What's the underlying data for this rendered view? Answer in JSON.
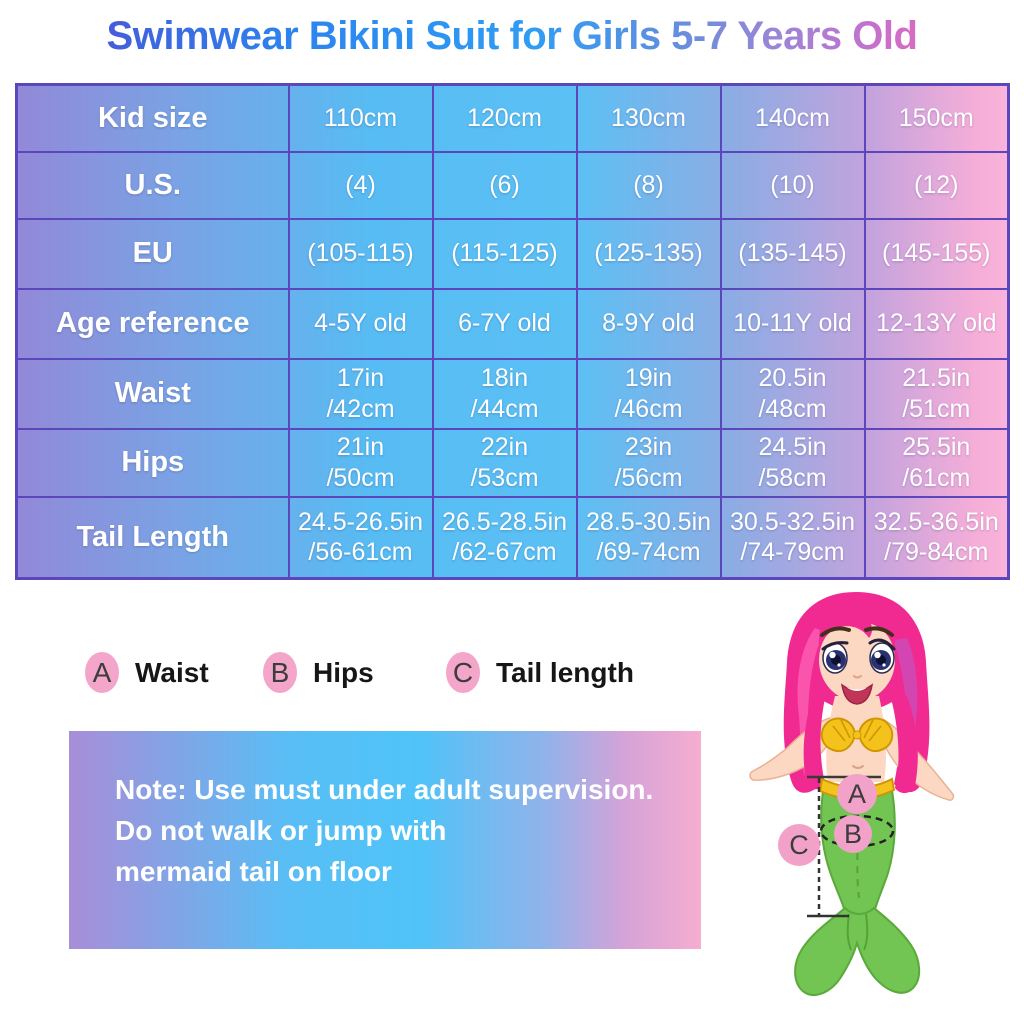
{
  "title": "Swimwear Bikini Suit for Girls 5-7 Years Old",
  "chart_data": {
    "type": "table",
    "title": "Swimwear Bikini Suit for Girls 5-7 Years Old",
    "header": [
      "Kid size",
      "110cm",
      "120cm",
      "130cm",
      "140cm",
      "150cm"
    ],
    "rows": [
      [
        "U.S.",
        "(4)",
        "(6)",
        "(8)",
        "(10)",
        "(12)"
      ],
      [
        "EU",
        "(105-115)",
        "(115-125)",
        "(125-135)",
        "(135-145)",
        "(145-155)"
      ],
      [
        "Age reference",
        "4-5Y old",
        "6-7Y old",
        "8-9Y old",
        "10-11Y old",
        "12-13Y old"
      ],
      [
        "Waist",
        "17in\n/42cm",
        "18in\n/44cm",
        "19in\n/46cm",
        "20.5in\n/48cm",
        "21.5in\n/51cm"
      ],
      [
        "Hips",
        "21in\n/50cm",
        "22in\n/53cm",
        "23in\n/56cm",
        "24.5in\n/58cm",
        "25.5in\n/61cm"
      ],
      [
        "Tail Length",
        "24.5-26.5in\n/56-61cm",
        "26.5-28.5in\n/62-67cm",
        "28.5-30.5in\n/69-74cm",
        "30.5-32.5in\n/74-79cm",
        "32.5-36.5in\n/79-84cm"
      ]
    ]
  },
  "legend": {
    "items": [
      {
        "letter": "A",
        "label": "Waist"
      },
      {
        "letter": "B",
        "label": "Hips"
      },
      {
        "letter": "C",
        "label": "Tail length"
      }
    ]
  },
  "note": {
    "lines": [
      "Note: Use must under adult supervision.",
      "Do not walk or jump with",
      "mermaid tail on floor"
    ]
  },
  "diagram": {
    "markers": {
      "a": "A",
      "b": "B",
      "c": "C"
    }
  },
  "colors": {
    "table_border": "#5b46bb",
    "table_gradient": [
      "#9289d8",
      "#57bcf3",
      "#f6aed8"
    ],
    "title_gradient": [
      "#6a3cc3",
      "#2f9df4",
      "#f763af"
    ],
    "legend_badge": "#f3a6ca",
    "tail_green": "#72c453",
    "hair_pink": "#f12a92",
    "note_text": "#ffffff"
  }
}
